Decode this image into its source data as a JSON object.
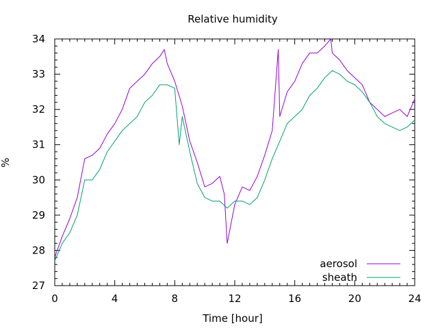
{
  "chart_data": {
    "type": "line",
    "title": "Relative humidity",
    "xlabel": "Time [hour]",
    "ylabel": "%",
    "xlim": [
      0,
      24
    ],
    "ylim": [
      27,
      34
    ],
    "xticks": [
      0,
      4,
      8,
      12,
      16,
      20,
      24
    ],
    "yticks": [
      27,
      28,
      29,
      30,
      31,
      32,
      33,
      34
    ],
    "grid": false,
    "legend_position": "bottom-right",
    "series": [
      {
        "name": "aerosol",
        "color": "#9400d3",
        "x": [
          0,
          0.5,
          1,
          1.5,
          2,
          2.5,
          3,
          3.5,
          4,
          4.5,
          5,
          5.5,
          6,
          6.5,
          7,
          7.3,
          7.5,
          8,
          8.5,
          9,
          9.5,
          10,
          10.5,
          11,
          11.3,
          11.5,
          12,
          12.5,
          13,
          13.5,
          14,
          14.5,
          14.9,
          15,
          15.5,
          16,
          16.5,
          17,
          17.5,
          18,
          18.4,
          18.5,
          19,
          19.5,
          20,
          20.5,
          21,
          21.5,
          22,
          22.5,
          23,
          23.5,
          24
        ],
        "y": [
          27.8,
          28.4,
          28.9,
          29.5,
          30.6,
          30.7,
          30.9,
          31.3,
          31.6,
          32.0,
          32.6,
          32.8,
          33.0,
          33.3,
          33.5,
          33.7,
          33.3,
          32.8,
          32.1,
          31.1,
          30.5,
          29.8,
          29.9,
          30.1,
          29.6,
          28.2,
          29.3,
          29.8,
          29.7,
          30.1,
          30.7,
          31.4,
          33.7,
          31.8,
          32.5,
          32.8,
          33.3,
          33.6,
          33.6,
          33.8,
          34.0,
          33.6,
          33.4,
          33.1,
          32.9,
          32.7,
          32.2,
          32.0,
          31.8,
          31.9,
          32.0,
          31.8,
          32.3
        ]
      },
      {
        "name": "sheath",
        "color": "#009e73",
        "x": [
          0,
          0.5,
          1,
          1.5,
          2,
          2.5,
          3,
          3.5,
          4,
          4.5,
          5,
          5.5,
          6,
          6.5,
          7,
          7.5,
          8,
          8.3,
          8.5,
          9,
          9.5,
          10,
          10.5,
          11,
          11.5,
          12,
          12.5,
          13,
          13.5,
          14,
          14.5,
          15,
          15.5,
          16,
          16.5,
          17,
          17.5,
          18,
          18.5,
          19,
          19.5,
          20,
          20.5,
          21,
          21.5,
          22,
          22.5,
          23,
          23.5,
          24
        ],
        "y": [
          27.7,
          28.2,
          28.5,
          29.0,
          30.0,
          30.0,
          30.3,
          30.8,
          31.1,
          31.4,
          31.6,
          31.8,
          32.2,
          32.4,
          32.7,
          32.7,
          32.6,
          31.0,
          31.8,
          30.8,
          29.9,
          29.5,
          29.4,
          29.4,
          29.2,
          29.4,
          29.4,
          29.3,
          29.5,
          30.0,
          30.6,
          31.1,
          31.6,
          31.8,
          32.0,
          32.4,
          32.6,
          32.9,
          33.1,
          33.0,
          32.8,
          32.7,
          32.5,
          32.2,
          31.8,
          31.6,
          31.5,
          31.4,
          31.5,
          31.7
        ]
      }
    ]
  }
}
